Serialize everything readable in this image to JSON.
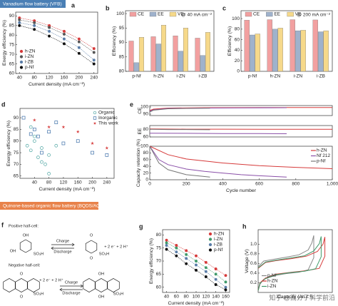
{
  "banners": [
    "Vanadium flow battery (VFB)",
    "Quinone-based organic flow battery (BQDS/AQS)"
  ],
  "watermark": "知乎 @高分子科学前沿",
  "scheme": {
    "panel": "f",
    "positive": {
      "title": "Positive half-cell:",
      "left_atoms": [
        "OH",
        "OH",
        "SO₃H"
      ],
      "right_atoms": [
        "O",
        "O",
        "SO₃H"
      ],
      "charge": "Charge",
      "discharge": "Discharge",
      "electrons": "+ 2 e⁻ + 2 H⁺"
    },
    "negative": {
      "title": "Negative half-cell:",
      "left_atoms": [
        "O",
        "O",
        "SO₃H"
      ],
      "right_atoms": [
        "OH",
        "OH",
        "SO₃H"
      ],
      "charge": "Charge",
      "discharge": "Discharge",
      "electrons": "+ 2 e⁻ + 2 H⁺"
    }
  },
  "chart_data": [
    {
      "type": "line",
      "panel": "a",
      "xlabel": "Current density (mA cm⁻²)",
      "ylabel": "Energy efficiency (%)",
      "x": [
        40,
        80,
        120,
        160,
        200,
        240
      ],
      "xlim": [
        30,
        250
      ],
      "xticks": [
        40,
        80,
        120,
        160,
        200,
        240
      ],
      "ylim": [
        60,
        92
      ],
      "yticks": [
        60,
        65,
        70,
        75,
        80,
        85,
        90
      ],
      "legend": "lower left",
      "markers": true,
      "series": [
        {
          "name": "h-ZN",
          "color": "#d63a3a",
          "values": [
            89,
            87.5,
            85,
            82,
            78,
            73
          ]
        },
        {
          "name": "i-ZN",
          "color": "#555555",
          "values": [
            88,
            86.5,
            84,
            80.5,
            76.5,
            71
          ]
        },
        {
          "name": "i-ZB",
          "color": "#5a7da8",
          "values": [
            86.5,
            85,
            82,
            78,
            73.5,
            67
          ]
        },
        {
          "name": "p-Nf",
          "color": "#111111",
          "values": [
            85,
            83,
            79.5,
            75.5,
            70.5,
            65
          ]
        }
      ]
    },
    {
      "type": "bar",
      "panel": "b",
      "ylabel": "Efficiency (%)",
      "annotation": "@ 40 mA cm⁻²",
      "categories": [
        "p-Nf",
        "h-ZN",
        "i-ZN",
        "i-ZB"
      ],
      "ylim": [
        80,
        101
      ],
      "yticks": [
        80,
        85,
        90,
        95,
        100
      ],
      "legend": "upper left",
      "series": [
        {
          "name": "CE",
          "color": "#f2a0a0",
          "values": [
            90.5,
            92,
            92.3,
            91.5
          ]
        },
        {
          "name": "EE",
          "color": "#9fb2cc",
          "values": [
            83,
            89.5,
            87,
            85.5
          ]
        },
        {
          "name": "VE",
          "color": "#f6d98a",
          "values": [
            91.8,
            96,
            95,
            93.5
          ]
        }
      ]
    },
    {
      "type": "bar",
      "panel": "c",
      "ylabel": "Efficiency (%)",
      "annotation": "@ 200 mA cm⁻²",
      "categories": [
        "p-Nf",
        "h-ZN",
        "i-ZN",
        "i-ZB"
      ],
      "ylim": [
        0,
        115
      ],
      "yticks": [
        0,
        20,
        40,
        60,
        80,
        100
      ],
      "legend": "upper left",
      "series": [
        {
          "name": "CE",
          "color": "#f2a0a0",
          "values": [
            97,
            98,
            98,
            97.5
          ]
        },
        {
          "name": "EE",
          "color": "#9fb2cc",
          "values": [
            69,
            80,
            77,
            75
          ]
        },
        {
          "name": "VE",
          "color": "#f6d98a",
          "values": [
            71,
            82,
            78,
            77
          ]
        }
      ]
    },
    {
      "type": "scatter",
      "panel": "d",
      "xlabel": "Current density (mA cm⁻²)",
      "ylabel": "Energy efficiency (%)",
      "xlim": [
        0,
        260
      ],
      "xticks": [
        40,
        80,
        120,
        160,
        200,
        240
      ],
      "ylim": [
        64,
        94
      ],
      "yticks": [
        65,
        70,
        75,
        80,
        85,
        90
      ],
      "legend": "upper right",
      "series": [
        {
          "name": "Organic",
          "color": "#4aa3a0",
          "marker": "circle-open",
          "x": [
            20,
            30,
            40,
            50,
            60,
            70,
            80,
            80,
            100,
            40,
            60,
            30
          ],
          "values": [
            78,
            76,
            80,
            73,
            71,
            70,
            74,
            66,
            78,
            82,
            77,
            86
          ]
        },
        {
          "name": "Inorganic",
          "color": "#3d6fa8",
          "marker": "square-open",
          "x": [
            10,
            30,
            50,
            60,
            80,
            120,
            160,
            200,
            240,
            40,
            100
          ],
          "values": [
            90,
            83,
            82,
            75,
            84,
            79,
            80,
            75,
            74,
            85,
            88
          ]
        },
        {
          "name": "This work",
          "color": "#d63a3a",
          "marker": "star",
          "x": [
            40,
            80,
            120,
            160,
            200,
            240
          ],
          "values": [
            89,
            86,
            86,
            84,
            79,
            77
          ]
        }
      ]
    },
    {
      "type": "line",
      "panel": "e",
      "ylabel": "CE",
      "xlim": [
        0,
        1000
      ],
      "ylim": [
        88,
        102
      ],
      "yticks": [
        90,
        100
      ],
      "series": [
        {
          "name": "h-ZN",
          "color": "#d63a3a",
          "x": [
            0,
            20,
            100,
            300,
            600,
            1000
          ],
          "values": [
            95,
            97,
            98.5,
            99,
            99.2,
            99.3
          ]
        },
        {
          "name": "Nf 212",
          "color": "#8a4fa8",
          "x": [
            0,
            20,
            100,
            300,
            500,
            750
          ],
          "values": [
            94,
            96,
            98,
            98.5,
            98.8,
            99
          ]
        },
        {
          "name": "p-Nf",
          "color": "#777777",
          "x": [
            0,
            20,
            100,
            200,
            330
          ],
          "values": [
            93,
            95.5,
            97.5,
            98,
            98.3
          ]
        }
      ]
    },
    {
      "type": "line",
      "ylabel": "EE",
      "xlim": [
        0,
        1000
      ],
      "ylim": [
        60,
        90
      ],
      "yticks": [
        60,
        80
      ],
      "series": [
        {
          "name": "h-ZN",
          "color": "#d63a3a",
          "x": [
            0,
            200,
            400,
            600,
            800,
            1000
          ],
          "values": [
            81,
            80.5,
            80.5,
            80,
            80,
            80
          ]
        },
        {
          "name": "Nf 212",
          "color": "#8a4fa8",
          "x": [
            0,
            200,
            400,
            600,
            750
          ],
          "values": [
            70,
            69.5,
            69,
            69,
            68.5
          ]
        },
        {
          "name": "p-Nf",
          "color": "#777777",
          "x": [
            0,
            100,
            200,
            330
          ],
          "values": [
            80,
            79.5,
            79.5,
            79
          ]
        }
      ]
    },
    {
      "type": "line",
      "ylabel": "Capacity retention (%)",
      "xlabel": "Cycle number",
      "xlim": [
        0,
        1000
      ],
      "xticks": [
        0,
        200,
        400,
        600,
        800,
        {
          "value": 1000,
          "label": "1,000"
        }
      ],
      "ylim": [
        0,
        100
      ],
      "yticks": [
        0,
        20,
        40,
        60,
        80,
        100
      ],
      "legend": "upper right",
      "series": [
        {
          "name": "h-ZN",
          "color": "#d63a3a",
          "x": [
            0,
            100,
            200,
            400,
            600,
            800,
            1000
          ],
          "values": [
            100,
            75,
            62,
            50,
            42,
            37,
            33
          ]
        },
        {
          "name": "Nf 212",
          "color": "#8a4fa8",
          "x": [
            0,
            50,
            100,
            200,
            300,
            400,
            500,
            600,
            750
          ],
          "values": [
            100,
            60,
            45,
            32,
            25,
            20,
            15,
            12,
            8
          ]
        },
        {
          "name": "p-Nf",
          "color": "#777777",
          "x": [
            0,
            50,
            100,
            200,
            330
          ],
          "values": [
            100,
            50,
            30,
            15,
            8
          ]
        }
      ]
    },
    {
      "type": "line",
      "panel": "g",
      "xlabel": "Current density (mA cm⁻²)",
      "ylabel": "Energy efficiency (%)",
      "x": [
        40,
        60,
        80,
        100,
        120,
        140,
        160
      ],
      "xlim": [
        32,
        168
      ],
      "xticks": [
        40,
        60,
        80,
        100,
        120,
        140,
        160
      ],
      "ylim": [
        58,
        82
      ],
      "yticks": [
        60,
        65,
        70,
        75,
        80
      ],
      "legend": "upper right",
      "markers": true,
      "series": [
        {
          "name": "h-ZN",
          "color": "#d63a3a",
          "values": [
            78,
            76,
            74,
            72,
            69.5,
            67,
            64.5
          ]
        },
        {
          "name": "i-ZN",
          "color": "#3f9a6a",
          "values": [
            77,
            75,
            72.5,
            70,
            67.5,
            65,
            62
          ]
        },
        {
          "name": "i-ZB",
          "color": "#5a7da8",
          "values": [
            76,
            73.5,
            71,
            68.5,
            66,
            63,
            60
          ]
        },
        {
          "name": "p-Nf",
          "color": "#111111",
          "values": [
            74.5,
            72,
            69,
            66.5,
            64,
            61,
            59
          ]
        }
      ]
    },
    {
      "type": "line",
      "panel": "h",
      "xlabel": "Capacity (Ah l⁻¹)",
      "ylabel": "Voltage (V)",
      "xlim": [
        0,
        4
      ],
      "ylim": [
        0,
        1.3
      ],
      "yticks": [
        0.2,
        0.4,
        0.6,
        0.8,
        {
          "value": 1,
          "label": "1.0"
        }
      ],
      "legend": "lower left",
      "series": [
        {
          "name": "p-Nf",
          "color": "#888888",
          "x": [
            0,
            0.3,
            0.9,
            1.5,
            2.2,
            2.7,
            2.9,
            3,
            3,
            2.7,
            2.2,
            1.5,
            0.9,
            0.3,
            0.1,
            0
          ],
          "values": [
            0.53,
            0.65,
            0.69,
            0.73,
            0.78,
            0.88,
            1.03,
            1.18,
            0.72,
            0.47,
            0.42,
            0.39,
            0.35,
            0.27,
            0.17,
            0.03
          ]
        },
        {
          "name": "h-ZN",
          "color": "#d63a3a",
          "x": [
            0,
            0.4,
            1,
            1.8,
            2.6,
            3.2,
            3.5,
            3.6,
            3.6,
            3.3,
            2.6,
            1.8,
            1,
            0.4,
            0.1,
            0
          ],
          "values": [
            0.5,
            0.62,
            0.66,
            0.7,
            0.75,
            0.85,
            1,
            1.15,
            0.75,
            0.5,
            0.45,
            0.42,
            0.38,
            0.3,
            0.2,
            0.05
          ]
        },
        {
          "name": "i-ZN",
          "color": "#3f9a6a",
          "x": [
            0,
            0.4,
            1,
            1.7,
            2.5,
            3,
            3.3,
            3.4,
            3.4,
            3.1,
            2.5,
            1.7,
            1,
            0.4,
            0.1,
            0
          ],
          "values": [
            0.51,
            0.63,
            0.67,
            0.71,
            0.76,
            0.86,
            1.01,
            1.16,
            0.74,
            0.49,
            0.44,
            0.41,
            0.37,
            0.29,
            0.19,
            0.04
          ]
        }
      ]
    }
  ]
}
